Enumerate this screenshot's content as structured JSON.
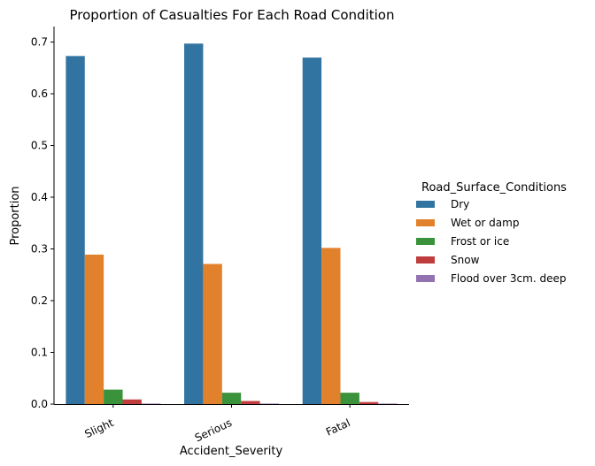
{
  "chart_data": {
    "type": "bar",
    "title": "Proportion of Casualties For Each Road Condition",
    "xlabel": "Accident_Severity",
    "ylabel": "Proportion",
    "categories": [
      "Slight",
      "Serious",
      "Fatal"
    ],
    "ylim": [
      0,
      0.73
    ],
    "yticks": [
      "0.0",
      "0.1",
      "0.2",
      "0.3",
      "0.4",
      "0.5",
      "0.6",
      "0.7"
    ],
    "grid": false,
    "legend": {
      "title": "Road_Surface_Conditions",
      "placement": "right"
    },
    "series": [
      {
        "name": "Dry",
        "color": "#3274a1",
        "values": [
          0.673,
          0.697,
          0.67
        ]
      },
      {
        "name": "Wet or damp",
        "color": "#e1812c",
        "values": [
          0.289,
          0.271,
          0.302
        ]
      },
      {
        "name": "Frost or ice",
        "color": "#3a923a",
        "values": [
          0.028,
          0.022,
          0.022
        ]
      },
      {
        "name": "Snow",
        "color": "#c03d3e",
        "values": [
          0.009,
          0.006,
          0.004
        ]
      },
      {
        "name": "Flood over 3cm. deep",
        "color": "#9372b2",
        "values": [
          0.001,
          0.001,
          0.001
        ]
      }
    ]
  }
}
